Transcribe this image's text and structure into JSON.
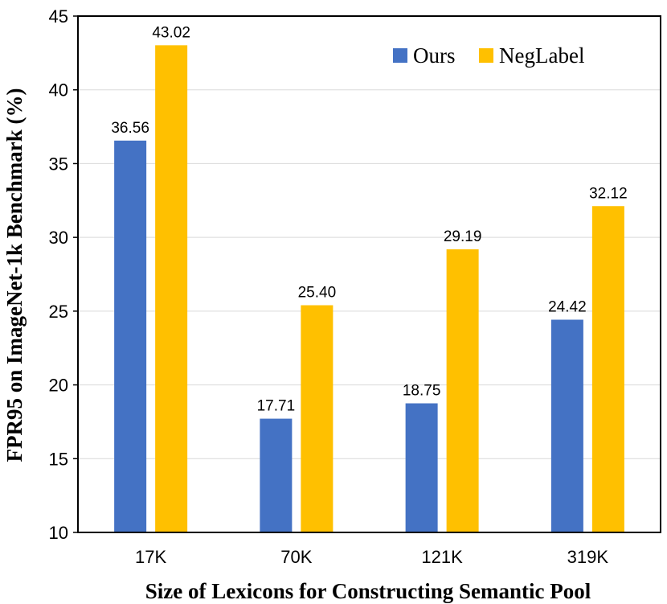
{
  "chart_data": {
    "type": "bar",
    "categories": [
      "17K",
      "70K",
      "121K",
      "319K"
    ],
    "series": [
      {
        "name": "Ours",
        "values": [
          36.56,
          17.71,
          18.75,
          24.42
        ],
        "color": "#4472C4"
      },
      {
        "name": "NegLabel",
        "values": [
          43.02,
          25.4,
          29.19,
          32.12
        ],
        "color": "#FFC000"
      }
    ],
    "data_labels": [
      [
        "36.56",
        "17.71",
        "18.75",
        "24.42"
      ],
      [
        "43.02",
        "25.40",
        "29.19",
        "32.12"
      ]
    ],
    "title": "",
    "xlabel": "Size of Lexicons for Constructing Semantic Pool",
    "ylabel": "FPR95 on ImageNet-1k Benchmark (%)",
    "ylim": [
      10,
      45
    ],
    "yticks": [
      10,
      15,
      20,
      25,
      30,
      35,
      40,
      45
    ],
    "grid": true,
    "legend_position": "top-right"
  }
}
